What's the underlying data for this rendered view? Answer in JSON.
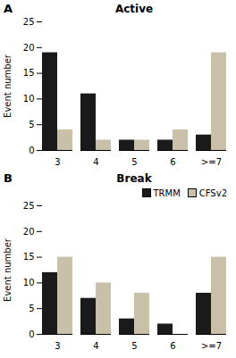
{
  "chart_data": [
    {
      "type": "bar",
      "title": "Active",
      "annotations": [
        "A"
      ],
      "ylabel": "Event number",
      "categories": [
        "3",
        "4",
        "5",
        "6",
        ">=7"
      ],
      "series": [
        {
          "name": "TRMM",
          "color": "#1a1a1a",
          "values": [
            19,
            11,
            2,
            2,
            3
          ]
        },
        {
          "name": "CFSv2",
          "color": "#c8c0a8",
          "values": [
            4,
            2,
            2,
            4,
            19
          ]
        }
      ],
      "ylim": [
        0,
        25
      ],
      "yticks": [
        0,
        5,
        10,
        15,
        20,
        25
      ]
    },
    {
      "type": "bar",
      "title": "Break",
      "annotations": [
        "B"
      ],
      "ylabel": "Event number",
      "categories": [
        "3",
        "4",
        "5",
        "6",
        ">=7"
      ],
      "series": [
        {
          "name": "TRMM",
          "color": "#1a1a1a",
          "values": [
            12,
            7,
            3,
            2,
            8
          ]
        },
        {
          "name": "CFSv2",
          "color": "#c8c0a8",
          "values": [
            15,
            10,
            8,
            0,
            15
          ]
        }
      ],
      "ylim": [
        0,
        25
      ],
      "yticks": [
        0,
        5,
        10,
        15,
        20,
        25
      ],
      "legend": "upper right"
    }
  ]
}
